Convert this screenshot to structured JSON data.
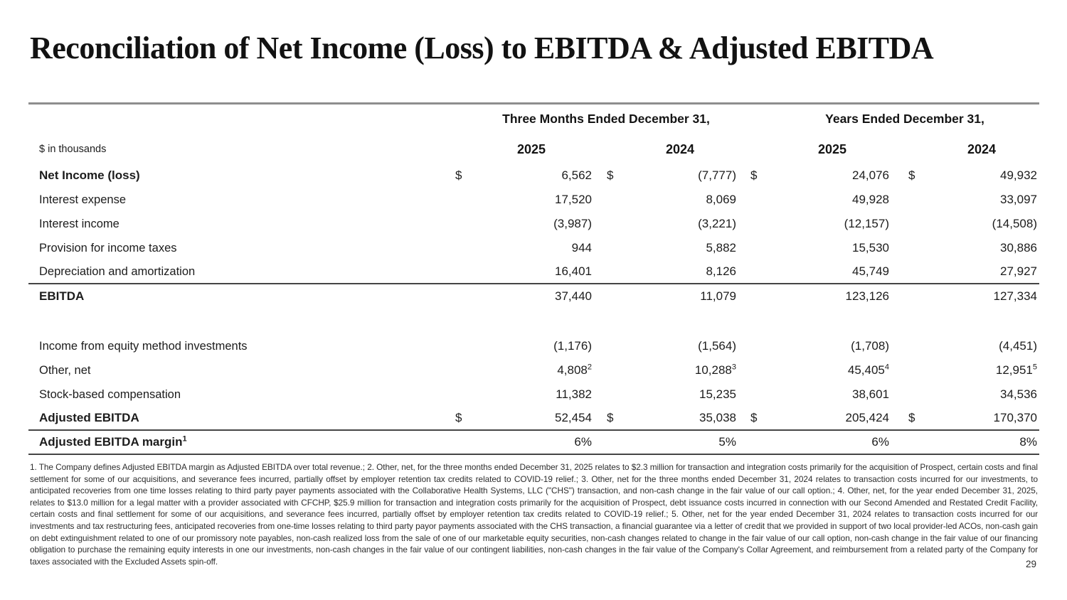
{
  "page": {
    "title": "Reconciliation of Net Income (Loss) to EBITDA & Adjusted EBITDA",
    "page_number": "29"
  },
  "table": {
    "units_label": "$ in thousands",
    "currency_symbol": "$",
    "group_headers": {
      "three_months": "Three Months Ended December 31,",
      "years": "Years Ended December 31,"
    },
    "year_columns": [
      "2025",
      "2024",
      "2025",
      "2024"
    ],
    "rows": [
      {
        "label": "Net Income (loss)",
        "values": [
          "6,562",
          "(7,777)",
          "24,076",
          "49,932"
        ]
      },
      {
        "label": "Interest expense",
        "values": [
          "17,520",
          "8,069",
          "49,928",
          "33,097"
        ]
      },
      {
        "label": "Interest income",
        "values": [
          "(3,987)",
          "(3,221)",
          "(12,157)",
          "(14,508)"
        ]
      },
      {
        "label": "Provision for income taxes",
        "values": [
          "944",
          "5,882",
          "15,530",
          "30,886"
        ]
      },
      {
        "label": "Depreciation and amortization",
        "values": [
          "16,401",
          "8,126",
          "45,749",
          "27,927"
        ]
      },
      {
        "label": "EBITDA",
        "values": [
          "37,440",
          "11,079",
          "123,126",
          "127,334"
        ]
      },
      {
        "label": "Income from equity method investments",
        "values": [
          "(1,176)",
          "(1,564)",
          "(1,708)",
          "(4,451)"
        ]
      },
      {
        "label": "Other, net",
        "values": [
          "4,808",
          "10,288",
          "45,405",
          "12,951"
        ],
        "sups": [
          "2",
          "3",
          "4",
          "5"
        ]
      },
      {
        "label": "Stock-based compensation",
        "values": [
          "11,382",
          "15,235",
          "38,601",
          "34,536"
        ]
      },
      {
        "label": "Adjusted EBITDA",
        "values": [
          "52,454",
          "35,038",
          "205,424",
          "170,370"
        ]
      },
      {
        "label": "Adjusted EBITDA margin",
        "label_sup": "1",
        "values": [
          "6%",
          "5%",
          "6%",
          "8%"
        ]
      }
    ]
  },
  "footnotes": "1. The Company defines Adjusted EBITDA margin as Adjusted EBITDA over total revenue.; 2. Other, net, for the three months ended December 31, 2025 relates to $2.3 million for transaction and integration costs primarily for the acquisition of Prospect, certain costs and final settlement for some of our acquisitions, and severance fees incurred, partially offset by employer retention tax credits related to COVID-19 relief.; 3. Other, net for the three months ended December 31, 2024 relates to transaction costs incurred for our investments, to anticipated recoveries from one time losses relating to third party payer payments associated with the Collaborative Health Systems, LLC (\"CHS\") transaction, and non-cash change in the fair value of our call option.; 4. Other, net, for the year ended December 31, 2025, relates to $13.0 million for a legal matter with a provider associated with CFCHP, $25.9 million for transaction and integration costs primarily for the acquisition of Prospect, debt issuance costs incurred in connection with our Second Amended and Restated Credit Facility, certain costs and final settlement for some of our acquisitions, and severance fees incurred, partially offset by employer retention tax credits related to COVID-19 relief.; 5. Other, net for the year ended December 31, 2024 relates to transaction costs incurred for our investments and tax restructuring fees, anticipated recoveries from one-time losses relating to third party payor payments associated with the CHS transaction, a financial guarantee via a letter of credit that we provided in support of two local provider-led ACOs, non-cash gain on debt extinguishment related to one of our promissory note payables, non-cash realized loss from the sale of one of our marketable equity securities, non-cash changes related to change in the fair value of our call option, non-cash change in the fair value of our financing obligation to purchase the remaining equity interests in one our investments, non-cash changes in the fair value of our contingent liabilities, non-cash changes in the fair value of the Company's Collar Agreement, and reimbursement from a related party of the Company for taxes associated with the Excluded Assets spin-off."
}
